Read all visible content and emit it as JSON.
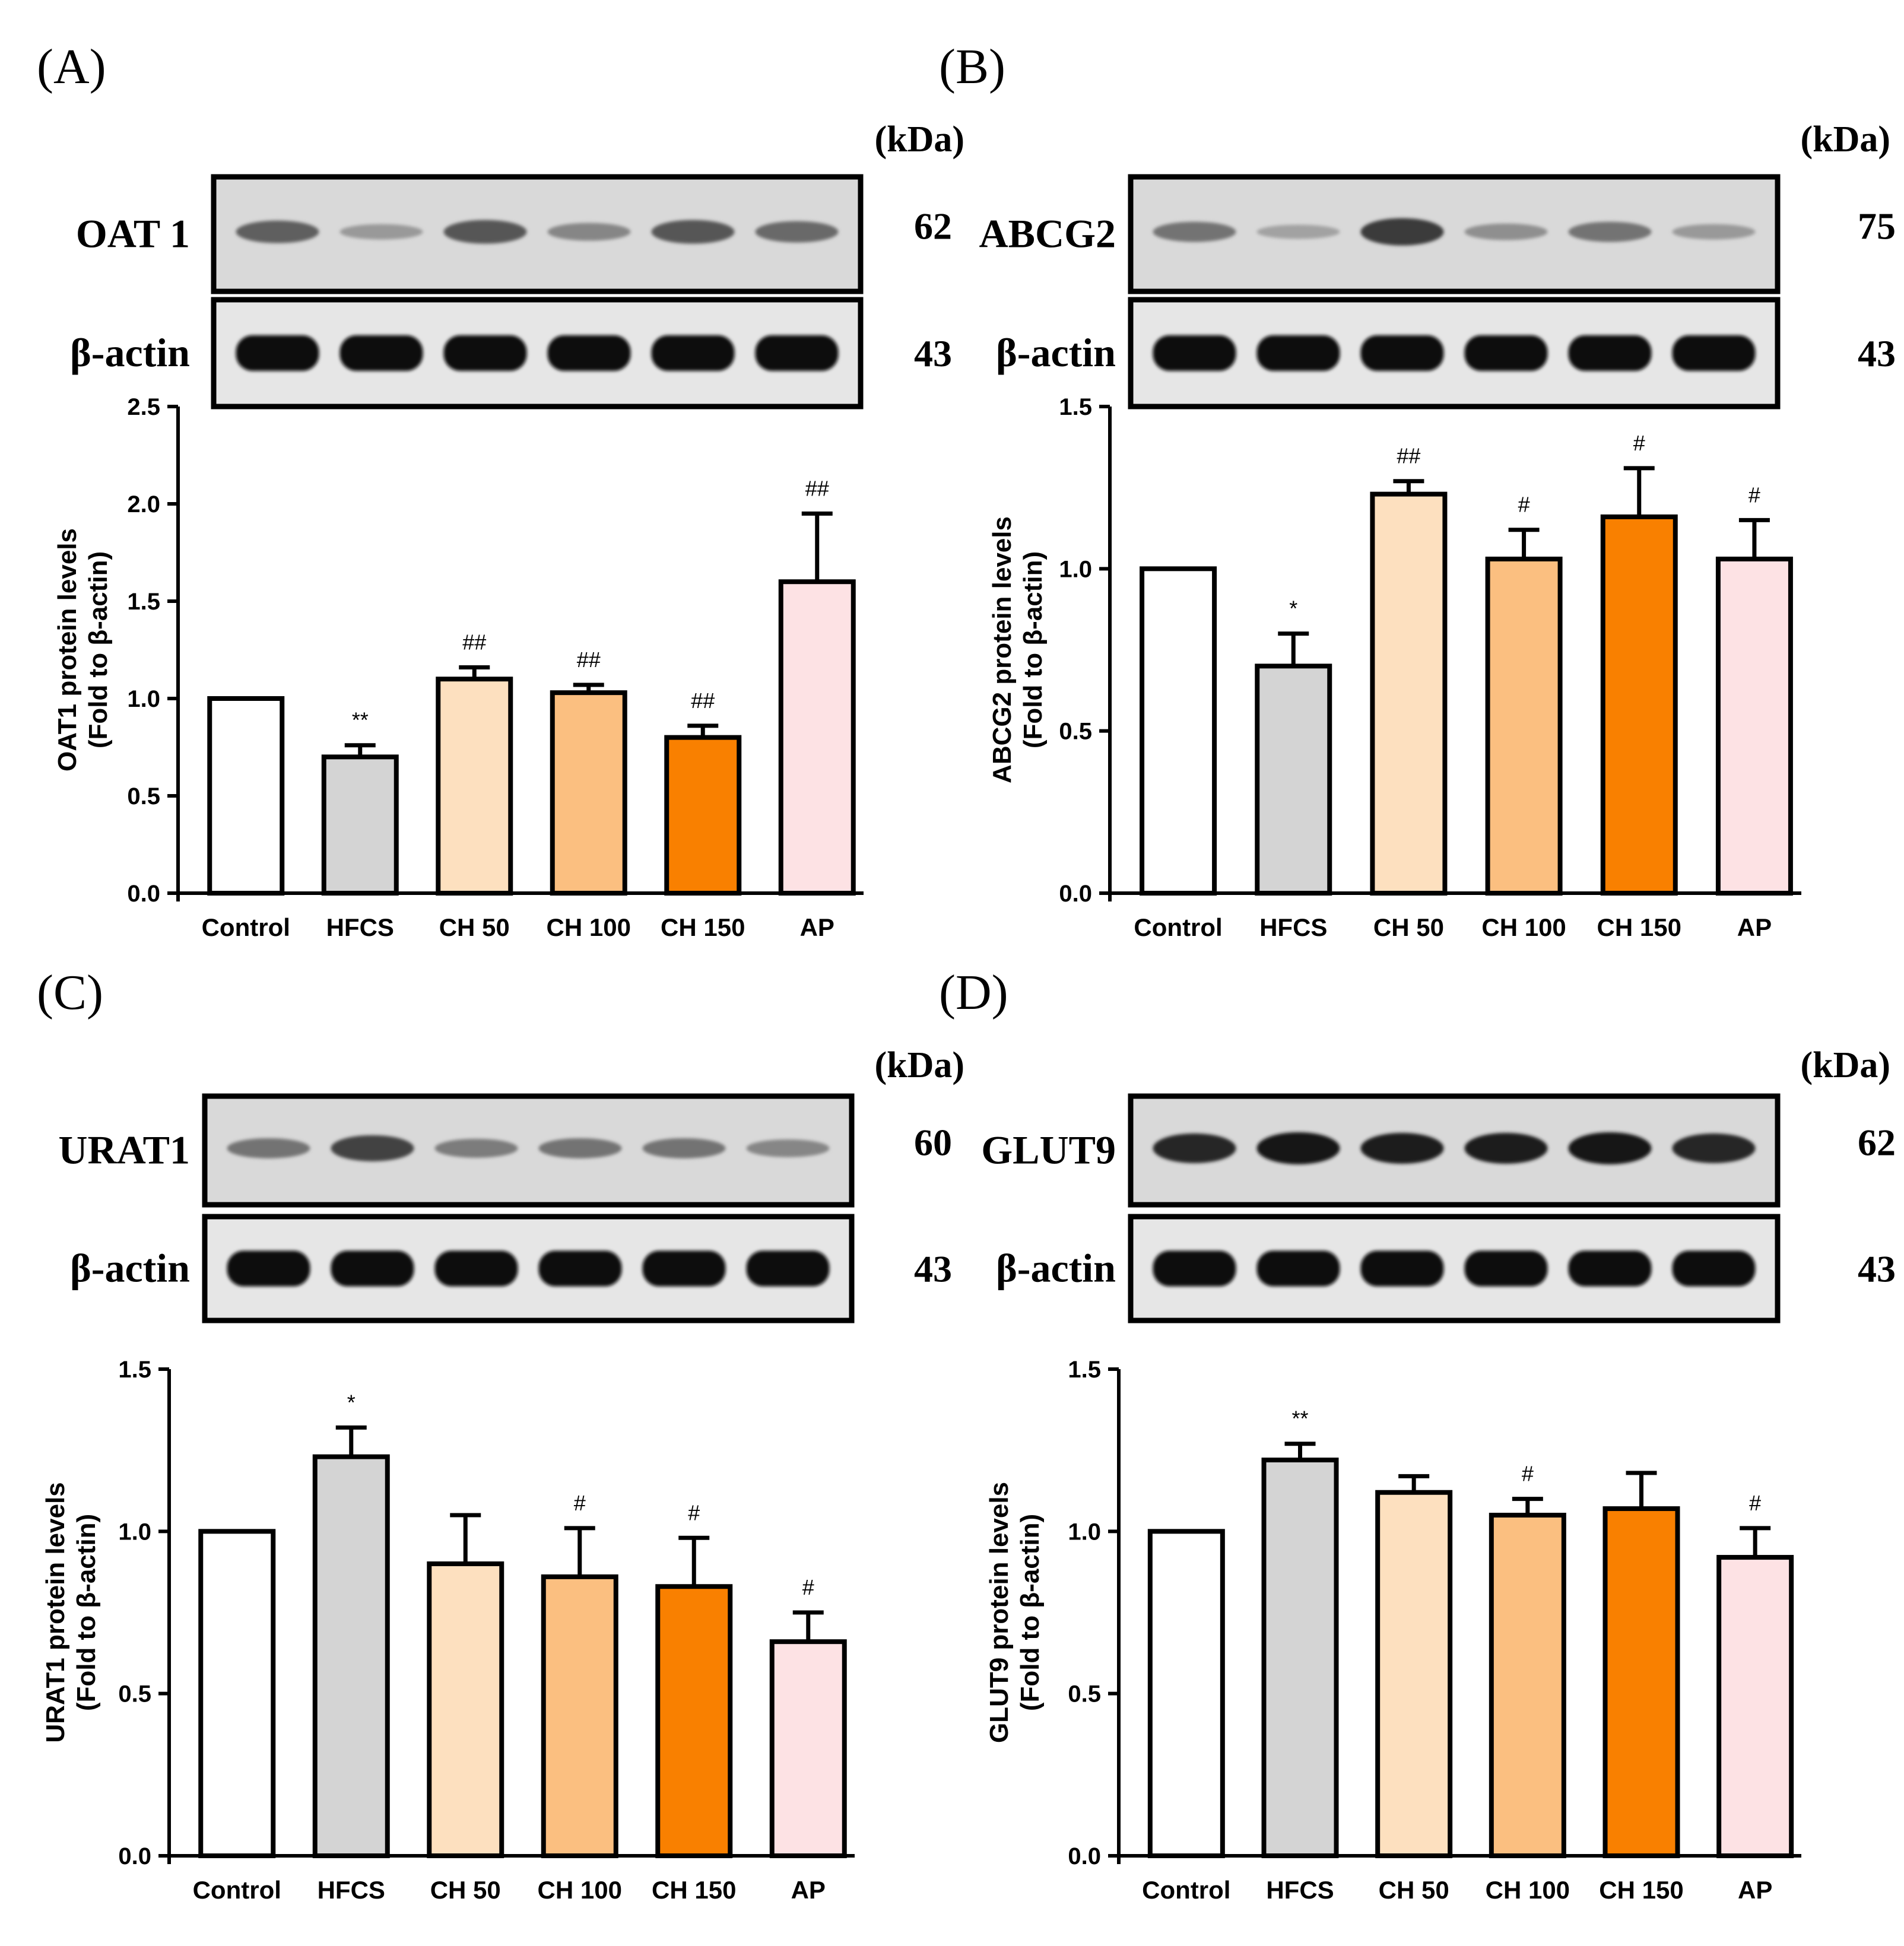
{
  "figure": {
    "units_label": "(kDa)"
  },
  "chart_data": [
    {
      "panel": "(A)",
      "type": "bar",
      "blot": {
        "target_label": "OAT 1",
        "target_kda": "62",
        "control_label": "β-actin",
        "control_kda": "43",
        "target_intensity": [
          0.55,
          0.25,
          0.6,
          0.35,
          0.6,
          0.5
        ]
      },
      "categories": [
        "Control",
        "HFCS",
        "CH 50",
        "CH 100",
        "CH 150",
        "AP"
      ],
      "values": [
        1.0,
        0.7,
        1.1,
        1.03,
        0.8,
        1.6
      ],
      "errors": [
        0,
        0.06,
        0.06,
        0.04,
        0.06,
        0.35
      ],
      "annotations": [
        "",
        "**",
        "##",
        "##",
        "##",
        "##"
      ],
      "ylabel": [
        "OAT1 protein levels",
        "(Fold to β-actin)"
      ],
      "ylim": [
        0,
        2.5
      ],
      "yticks": [
        "0.0",
        "0.5",
        "1.0",
        "1.5",
        "2.0",
        "2.5"
      ],
      "colors": [
        "#ffffff",
        "#d4d4d4",
        "#fde0bf",
        "#fbbf80",
        "#f98000",
        "#fde2e4"
      ]
    },
    {
      "panel": "(B)",
      "type": "bar",
      "blot": {
        "target_label": "ABCG2",
        "target_kda": "75",
        "control_label": "β-actin",
        "control_kda": "43",
        "target_intensity": [
          0.45,
          0.2,
          0.75,
          0.3,
          0.45,
          0.25
        ]
      },
      "categories": [
        "Control",
        "HFCS",
        "CH 50",
        "CH 100",
        "CH 150",
        "AP"
      ],
      "values": [
        1.0,
        0.7,
        1.23,
        1.03,
        1.16,
        1.03
      ],
      "errors": [
        0,
        0.1,
        0.04,
        0.09,
        0.15,
        0.12
      ],
      "annotations": [
        "",
        "*",
        "##",
        "#",
        "#",
        "#"
      ],
      "ylabel": [
        "ABCG2 protein levels",
        "(Fold to β-actin)"
      ],
      "ylim": [
        0,
        1.5
      ],
      "yticks": [
        "0.0",
        "0.5",
        "1.0",
        "1.5"
      ],
      "colors": [
        "#ffffff",
        "#d4d4d4",
        "#fde0bf",
        "#fbbf80",
        "#f98000",
        "#fde2e4"
      ]
    },
    {
      "panel": "(C)",
      "type": "bar",
      "blot": {
        "target_label": "URAT1",
        "target_kda": "60",
        "control_label": "β-actin",
        "control_kda": "43",
        "target_intensity": [
          0.45,
          0.7,
          0.4,
          0.45,
          0.45,
          0.35
        ]
      },
      "categories": [
        "Control",
        "HFCS",
        "CH 50",
        "CH 100",
        "CH 150",
        "AP"
      ],
      "values": [
        1.0,
        1.23,
        0.9,
        0.86,
        0.83,
        0.66
      ],
      "errors": [
        0,
        0.09,
        0.15,
        0.15,
        0.15,
        0.09
      ],
      "annotations": [
        "",
        "*",
        "",
        "#",
        "#",
        "#"
      ],
      "ylabel": [
        "URAT1 protein levels",
        "(Fold to β-actin)"
      ],
      "ylim": [
        0,
        1.5
      ],
      "yticks": [
        "0.0",
        "0.5",
        "1.0",
        "1.5"
      ],
      "colors": [
        "#ffffff",
        "#d4d4d4",
        "#fde0bf",
        "#fbbf80",
        "#f98000",
        "#fde2e4"
      ]
    },
    {
      "panel": "(D)",
      "type": "bar",
      "blot": {
        "target_label": "GLUT9",
        "target_kda": "62",
        "control_label": "β-actin",
        "control_kda": "43",
        "target_intensity": [
          0.85,
          0.95,
          0.9,
          0.9,
          0.95,
          0.85
        ]
      },
      "categories": [
        "Control",
        "HFCS",
        "CH 50",
        "CH 100",
        "CH 150",
        "AP"
      ],
      "values": [
        1.0,
        1.22,
        1.12,
        1.05,
        1.07,
        0.92
      ],
      "errors": [
        0,
        0.05,
        0.05,
        0.05,
        0.11,
        0.09
      ],
      "annotations": [
        "",
        "**",
        "",
        "#",
        "",
        "#"
      ],
      "ylabel": [
        "GLUT9 protein levels",
        "(Fold to β-actin)"
      ],
      "ylim": [
        0,
        1.5
      ],
      "yticks": [
        "0.0",
        "0.5",
        "1.0",
        "1.5"
      ],
      "colors": [
        "#ffffff",
        "#d4d4d4",
        "#fde0bf",
        "#fbbf80",
        "#f98000",
        "#fde2e4"
      ]
    }
  ]
}
